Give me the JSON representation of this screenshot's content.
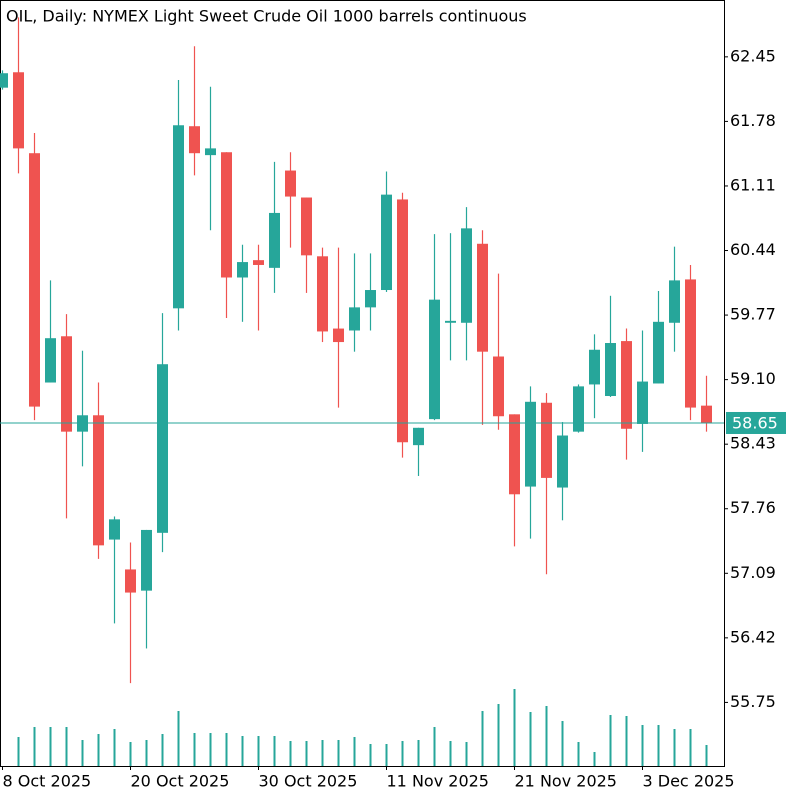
{
  "chart_data": {
    "type": "candlestick",
    "title": "OIL, Daily:  NYMEX Light Sweet Crude Oil 1000 barrels continuous",
    "categories": [
      "8 Oct 2025",
      null,
      null,
      null,
      null,
      null,
      null,
      null,
      "20 Oct 2025",
      null,
      null,
      null,
      null,
      null,
      null,
      null,
      "30 Oct 2025",
      null,
      null,
      null,
      null,
      null,
      null,
      null,
      "11 Nov 2025",
      null,
      null,
      null,
      null,
      null,
      null,
      null,
      "21 Nov 2025",
      null,
      null,
      null,
      null,
      null,
      null,
      null,
      "3 Dec 2025",
      null,
      null,
      null,
      null
    ],
    "open": [
      62.13,
      62.29,
      61.45,
      59.07,
      59.55,
      58.56,
      58.73,
      57.44,
      57.13,
      56.91,
      57.51,
      59.84,
      61.73,
      61.43,
      61.46,
      60.16,
      60.34,
      60.26,
      61.27,
      60.99,
      60.38,
      59.63,
      59.61,
      59.85,
      60.03,
      60.97,
      58.42,
      58.69,
      59.69,
      59.69,
      60.51,
      59.34,
      58.74,
      57.99,
      58.86,
      57.98,
      58.56,
      59.05,
      58.93,
      59.5,
      58.64,
      59.06,
      59.69,
      60.14,
      58.83
    ],
    "high": [
      62.31,
      62.86,
      61.66,
      60.13,
      59.78,
      59.4,
      59.07,
      57.68,
      57.41,
      57.54,
      59.79,
      62.21,
      62.56,
      62.14,
      61.46,
      60.5,
      60.5,
      61.36,
      61.46,
      60.99,
      60.47,
      60.47,
      60.41,
      60.41,
      61.26,
      61.04,
      58.6,
      60.61,
      60.62,
      60.89,
      60.65,
      60.2,
      58.74,
      59.03,
      58.96,
      58.66,
      59.05,
      59.57,
      59.97,
      59.63,
      59.61,
      60.02,
      60.48,
      60.29,
      59.14
    ],
    "low": [
      62.11,
      61.24,
      58.68,
      59.07,
      57.66,
      58.2,
      57.24,
      56.57,
      55.95,
      56.31,
      57.31,
      59.61,
      61.22,
      60.65,
      59.74,
      59.7,
      59.61,
      60.0,
      60.47,
      60.0,
      59.49,
      58.81,
      59.39,
      59.61,
      60.01,
      58.29,
      58.1,
      58.68,
      59.3,
      59.3,
      58.63,
      58.58,
      57.37,
      57.45,
      57.08,
      57.64,
      58.55,
      58.7,
      58.92,
      58.27,
      58.35,
      59.06,
      59.39,
      58.68,
      58.56
    ],
    "close": [
      62.28,
      61.5,
      58.82,
      59.53,
      58.56,
      58.73,
      57.38,
      57.65,
      56.89,
      57.54,
      59.26,
      61.74,
      61.45,
      61.5,
      60.16,
      60.32,
      60.29,
      60.83,
      61.0,
      60.39,
      59.6,
      59.49,
      59.85,
      60.03,
      61.02,
      58.45,
      58.6,
      59.93,
      59.71,
      60.67,
      59.39,
      58.72,
      57.91,
      58.87,
      58.08,
      58.52,
      59.03,
      59.41,
      59.48,
      58.59,
      59.08,
      59.7,
      60.13,
      58.81,
      58.65
    ],
    "volume": [
      null,
      29,
      39,
      39,
      39,
      26,
      32,
      37,
      24,
      26,
      32,
      55,
      33,
      33,
      33,
      30,
      30,
      30,
      25,
      25,
      26,
      26,
      29,
      22,
      22,
      25,
      26,
      39,
      25,
      24,
      55,
      62,
      77,
      54,
      60,
      45,
      24,
      14,
      51,
      50,
      41,
      41,
      37,
      37,
      21
    ],
    "up_color": "#26a69a",
    "down_color": "#ef5350",
    "volume_color": "#26a69a",
    "last_price": 58.65,
    "ylim": [
      55.09,
      63.04
    ],
    "yticks": [
      62.45,
      61.78,
      61.11,
      60.44,
      59.77,
      {
        "value": 59.1,
        "label": "59.10"
      },
      58.43,
      57.76,
      57.09,
      56.42,
      55.75
    ]
  }
}
